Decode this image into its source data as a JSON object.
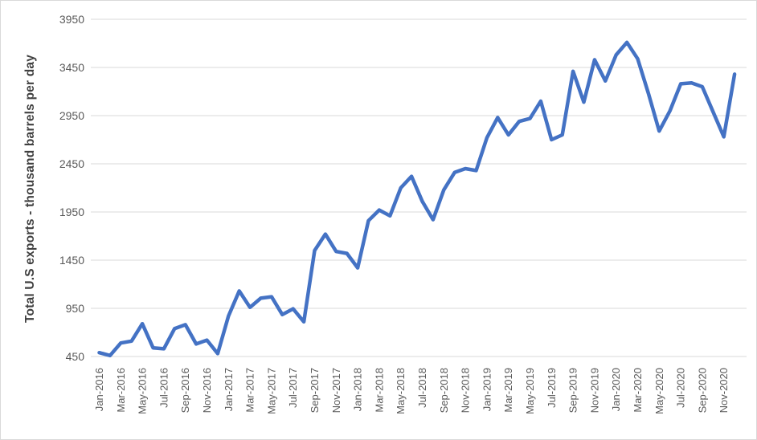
{
  "chart_data": {
    "type": "line",
    "title": "",
    "xlabel": "",
    "ylabel": "Total U.S exports - thousand barrels per day",
    "ylim": [
      450,
      3950
    ],
    "grid": "horizontal",
    "legend": "none",
    "y_ticks": [
      450,
      950,
      1450,
      1950,
      2450,
      2950,
      3450,
      3950
    ],
    "x_tick_labels": [
      "Jan-2016",
      "Mar-2016",
      "May-2016",
      "Jul-2016",
      "Sep-2016",
      "Nov-2016",
      "Jan-2017",
      "Mar-2017",
      "May-2017",
      "Jul-2017",
      "Sep-2017",
      "Nov-2017",
      "Jan-2018",
      "Mar-2018",
      "May-2018",
      "Jul-2018",
      "Sep-2018",
      "Nov-2018",
      "Jan-2019",
      "Mar-2019",
      "May-2019",
      "Jul-2019",
      "Sep-2019",
      "Nov-2019",
      "Jan-2020",
      "Mar-2020",
      "May-2020",
      "Jul-2020",
      "Sep-2020",
      "Nov-2020"
    ],
    "x": [
      "Jan-2016",
      "Feb-2016",
      "Mar-2016",
      "Apr-2016",
      "May-2016",
      "Jun-2016",
      "Jul-2016",
      "Aug-2016",
      "Sep-2016",
      "Oct-2016",
      "Nov-2016",
      "Dec-2016",
      "Jan-2017",
      "Feb-2017",
      "Mar-2017",
      "Apr-2017",
      "May-2017",
      "Jun-2017",
      "Jul-2017",
      "Aug-2017",
      "Sep-2017",
      "Oct-2017",
      "Nov-2017",
      "Dec-2017",
      "Jan-2018",
      "Feb-2018",
      "Mar-2018",
      "Apr-2018",
      "May-2018",
      "Jun-2018",
      "Jul-2018",
      "Aug-2018",
      "Sep-2018",
      "Oct-2018",
      "Nov-2018",
      "Dec-2018",
      "Jan-2019",
      "Feb-2019",
      "Mar-2019",
      "Apr-2019",
      "May-2019",
      "Jun-2019",
      "Jul-2019",
      "Aug-2019",
      "Sep-2019",
      "Oct-2019",
      "Nov-2019",
      "Dec-2019",
      "Jan-2020",
      "Feb-2020",
      "Mar-2020",
      "Apr-2020",
      "May-2020",
      "Jun-2020",
      "Jul-2020",
      "Aug-2020",
      "Sep-2020",
      "Oct-2020",
      "Nov-2020",
      "Dec-2020"
    ],
    "series": [
      {
        "color": "#4472C4",
        "values": [
          490,
          460,
          590,
          610,
          790,
          540,
          530,
          740,
          780,
          580,
          620,
          480,
          870,
          1130,
          960,
          1055,
          1070,
          885,
          945,
          810,
          1550,
          1720,
          1540,
          1520,
          1370,
          1860,
          1970,
          1910,
          2200,
          2320,
          2060,
          1870,
          2180,
          2360,
          2400,
          2380,
          2720,
          2930,
          2750,
          2890,
          2920,
          3100,
          2700,
          2750,
          3410,
          3090,
          3530,
          3310,
          3580,
          3710,
          3540,
          3180,
          2790,
          3000,
          3280,
          3290,
          3250,
          2990,
          2730,
          3380
        ]
      }
    ]
  },
  "colors": {
    "line": "#4472C4",
    "gridline": "#d9d9d9",
    "tick_text": "#595959",
    "axis_title_text": "#404040",
    "border": "#d9d9d9",
    "background": "#ffffff"
  }
}
